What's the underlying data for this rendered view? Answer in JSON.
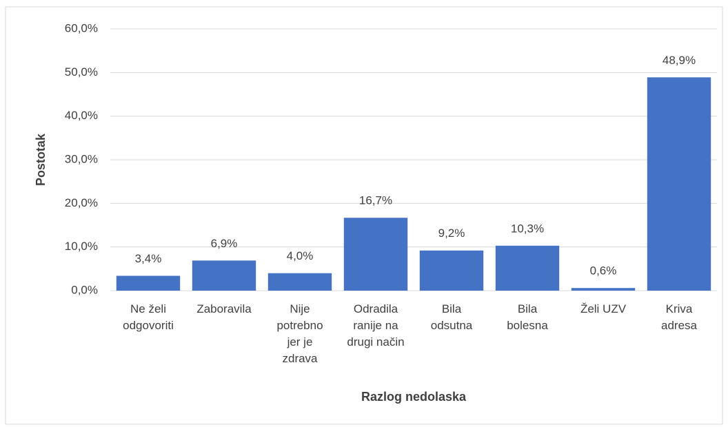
{
  "chart_data": {
    "type": "bar",
    "x_label": "Razlog nedolaska",
    "y_label": "Postotak",
    "categories": [
      "Ne želi\nodgovoriti",
      "Zaboravila",
      "Nije\npotrebno\njer je\nzdrava",
      "Odradila\nranije na\ndrugi način",
      "Bila\nodsutna",
      "Bila\nbolesna",
      "Želi UZV",
      "Kriva\nadresa"
    ],
    "values": [
      3.4,
      6.9,
      4.0,
      16.7,
      9.2,
      10.3,
      0.6,
      48.9
    ],
    "value_labels": [
      "3,4%",
      "6,9%",
      "4,0%",
      "16,7%",
      "9,2%",
      "10,3%",
      "0,6%",
      "48,9%"
    ],
    "color": "#4472c4",
    "ylim": [
      0,
      60
    ],
    "yticks": [
      {
        "value": 0,
        "label": "0,0%"
      },
      {
        "value": 10,
        "label": "10,0%"
      },
      {
        "value": 20,
        "label": "20,0%"
      },
      {
        "value": 30,
        "label": "30,0%"
      },
      {
        "value": 40,
        "label": "40,0%"
      },
      {
        "value": 50,
        "label": "50,0%"
      },
      {
        "value": 60,
        "label": "60,0%"
      }
    ],
    "grid": true
  }
}
